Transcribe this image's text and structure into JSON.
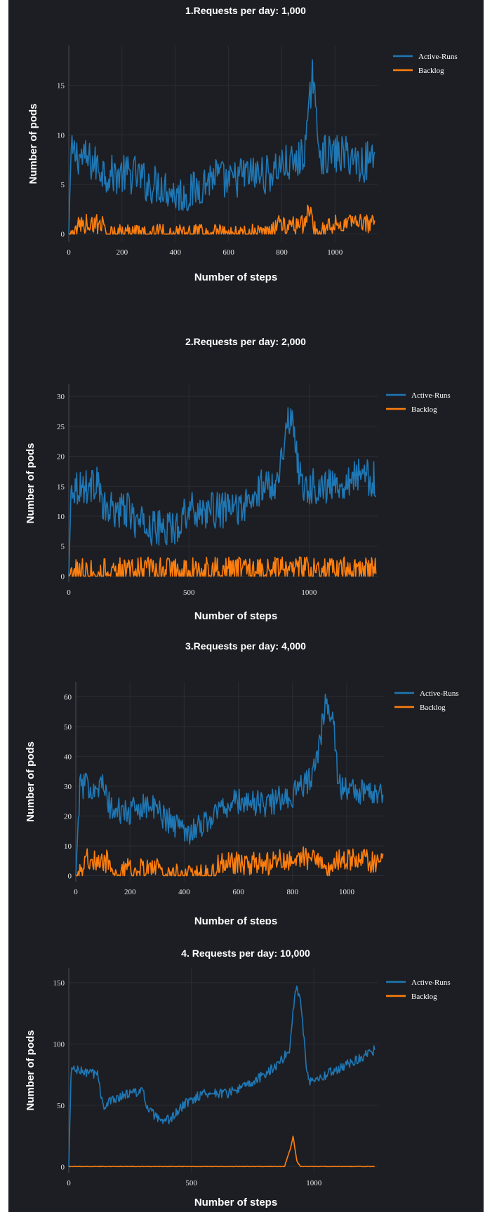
{
  "colors": {
    "background": "#1c1e23",
    "panel": "#1c1e23",
    "grid": "#2a2d33",
    "axis": "#4a4d53",
    "active_runs": "#1f77b4",
    "backlog": "#ff7f0e"
  },
  "chart_data": [
    {
      "type": "line",
      "title": "1.Requests per day: 1,000",
      "xlabel": "Number of steps",
      "ylabel": "Number of pods",
      "xlim": [
        0,
        1160
      ],
      "ylim": [
        -0.8,
        19
      ],
      "x_ticks": [
        0,
        200,
        400,
        600,
        800,
        1000
      ],
      "y_ticks": [
        0,
        5,
        10,
        15
      ],
      "legend_position": "top-right",
      "series": [
        {
          "name": "Active-Runs",
          "color": "#1f77b4",
          "points": [
            [
              0,
              0
            ],
            [
              8,
              8
            ],
            [
              30,
              8
            ],
            [
              100,
              7
            ],
            [
              150,
              6
            ],
            [
              200,
              6
            ],
            [
              250,
              6
            ],
            [
              300,
              5
            ],
            [
              350,
              5
            ],
            [
              400,
              4
            ],
            [
              450,
              4
            ],
            [
              500,
              5
            ],
            [
              550,
              6
            ],
            [
              600,
              5
            ],
            [
              650,
              6
            ],
            [
              700,
              6
            ],
            [
              750,
              6
            ],
            [
              800,
              7
            ],
            [
              850,
              7
            ],
            [
              880,
              8
            ],
            [
              900,
              11
            ],
            [
              915,
              17
            ],
            [
              930,
              11
            ],
            [
              950,
              8
            ],
            [
              1000,
              8
            ],
            [
              1050,
              8
            ],
            [
              1100,
              7
            ],
            [
              1150,
              8
            ]
          ],
          "noise": 2.0,
          "x_max": 1150
        },
        {
          "name": "Backlog",
          "color": "#ff7f0e",
          "points": [
            [
              0,
              0
            ],
            [
              30,
              0
            ],
            [
              35,
              1
            ],
            [
              130,
              1
            ],
            [
              140,
              0
            ],
            [
              760,
              0
            ],
            [
              780,
              1
            ],
            [
              890,
              1
            ],
            [
              905,
              3
            ],
            [
              915,
              1
            ],
            [
              930,
              0
            ],
            [
              1000,
              1
            ],
            [
              1150,
              1
            ]
          ],
          "noise": 1.0,
          "x_max": 1150
        }
      ]
    },
    {
      "type": "line",
      "title": "2.Requests per day: 2,000",
      "xlabel": "Number of steps",
      "ylabel": "Number of pods",
      "xlim": [
        0,
        1285
      ],
      "ylim": [
        -1,
        32
      ],
      "x_ticks": [
        0,
        500,
        1000
      ],
      "y_ticks": [
        0,
        5,
        10,
        15,
        20,
        25,
        30
      ],
      "legend_position": "top-right",
      "series": [
        {
          "name": "Active-Runs",
          "color": "#1f77b4",
          "points": [
            [
              0,
              0
            ],
            [
              10,
              15
            ],
            [
              100,
              15
            ],
            [
              120,
              17
            ],
            [
              140,
              11
            ],
            [
              250,
              11
            ],
            [
              280,
              9
            ],
            [
              350,
              8
            ],
            [
              450,
              8
            ],
            [
              480,
              11
            ],
            [
              550,
              11
            ],
            [
              650,
              11
            ],
            [
              760,
              12
            ],
            [
              800,
              15
            ],
            [
              870,
              16
            ],
            [
              900,
              24
            ],
            [
              930,
              27
            ],
            [
              950,
              20
            ],
            [
              970,
              15
            ],
            [
              1100,
              15
            ],
            [
              1200,
              17
            ],
            [
              1280,
              16
            ]
          ],
          "noise": 3.0,
          "x_max": 1280
        },
        {
          "name": "Backlog",
          "color": "#ff7f0e",
          "points": [
            [
              0,
              0
            ],
            [
              20,
              1
            ],
            [
              1280,
              1
            ]
          ],
          "noise": 2.2,
          "x_max": 1280
        }
      ]
    },
    {
      "type": "line",
      "title": "3.Requests per day: 4,000",
      "xlabel": "Number of steps",
      "ylabel": "Number of pods",
      "xlim": [
        0,
        1140
      ],
      "ylim": [
        -2,
        65
      ],
      "x_ticks": [
        0,
        200,
        400,
        600,
        800,
        1000
      ],
      "y_ticks": [
        0,
        10,
        20,
        30,
        40,
        50,
        60
      ],
      "legend_position": "top-right",
      "series": [
        {
          "name": "Active-Runs",
          "color": "#1f77b4",
          "points": [
            [
              0,
              0
            ],
            [
              15,
              30
            ],
            [
              100,
              30
            ],
            [
              130,
              22
            ],
            [
              200,
              21
            ],
            [
              250,
              24
            ],
            [
              300,
              22
            ],
            [
              350,
              18
            ],
            [
              420,
              15
            ],
            [
              480,
              18
            ],
            [
              540,
              23
            ],
            [
              600,
              25
            ],
            [
              700,
              24
            ],
            [
              800,
              27
            ],
            [
              860,
              32
            ],
            [
              890,
              38
            ],
            [
              920,
              57
            ],
            [
              950,
              55
            ],
            [
              970,
              30
            ],
            [
              1050,
              28
            ],
            [
              1135,
              28
            ]
          ],
          "noise": 4.5,
          "x_max": 1135
        },
        {
          "name": "Backlog",
          "color": "#ff7f0e",
          "points": [
            [
              0,
              0
            ],
            [
              20,
              0
            ],
            [
              40,
              5
            ],
            [
              120,
              5
            ],
            [
              130,
              0
            ],
            [
              190,
              2
            ],
            [
              300,
              2
            ],
            [
              310,
              0
            ],
            [
              510,
              0
            ],
            [
              530,
              4
            ],
            [
              700,
              4
            ],
            [
              800,
              6
            ],
            [
              900,
              6
            ],
            [
              940,
              0
            ],
            [
              960,
              5
            ],
            [
              1135,
              5
            ]
          ],
          "noise": 4.0,
          "x_max": 1135
        }
      ]
    },
    {
      "type": "line",
      "title": "4. Requests per day: 10,000",
      "xlabel": "Number of steps",
      "ylabel": "Number of pods",
      "xlim": [
        0,
        1260
      ],
      "ylim": [
        -5,
        162
      ],
      "x_ticks": [
        0,
        500,
        1000
      ],
      "y_ticks": [
        0,
        50,
        100,
        150
      ],
      "legend_position": "top-right",
      "series": [
        {
          "name": "Active-Runs",
          "color": "#1f77b4",
          "points": [
            [
              0,
              0
            ],
            [
              10,
              80
            ],
            [
              40,
              78
            ],
            [
              120,
              75
            ],
            [
              140,
              48
            ],
            [
              180,
              55
            ],
            [
              250,
              60
            ],
            [
              300,
              62
            ],
            [
              320,
              48
            ],
            [
              380,
              35
            ],
            [
              420,
              40
            ],
            [
              480,
              52
            ],
            [
              550,
              60
            ],
            [
              650,
              60
            ],
            [
              750,
              68
            ],
            [
              850,
              83
            ],
            [
              900,
              95
            ],
            [
              925,
              145
            ],
            [
              945,
              140
            ],
            [
              970,
              80
            ],
            [
              980,
              70
            ],
            [
              1050,
              75
            ],
            [
              1150,
              85
            ],
            [
              1250,
              95
            ]
          ],
          "noise": 4.0,
          "x_max": 1250
        },
        {
          "name": "Backlog",
          "color": "#ff7f0e",
          "points": [
            [
              0,
              0
            ],
            [
              880,
              0
            ],
            [
              905,
              15
            ],
            [
              915,
              25
            ],
            [
              930,
              5
            ],
            [
              945,
              0
            ],
            [
              1250,
              0
            ]
          ],
          "noise": 0.4,
          "x_max": 1250
        }
      ]
    }
  ]
}
